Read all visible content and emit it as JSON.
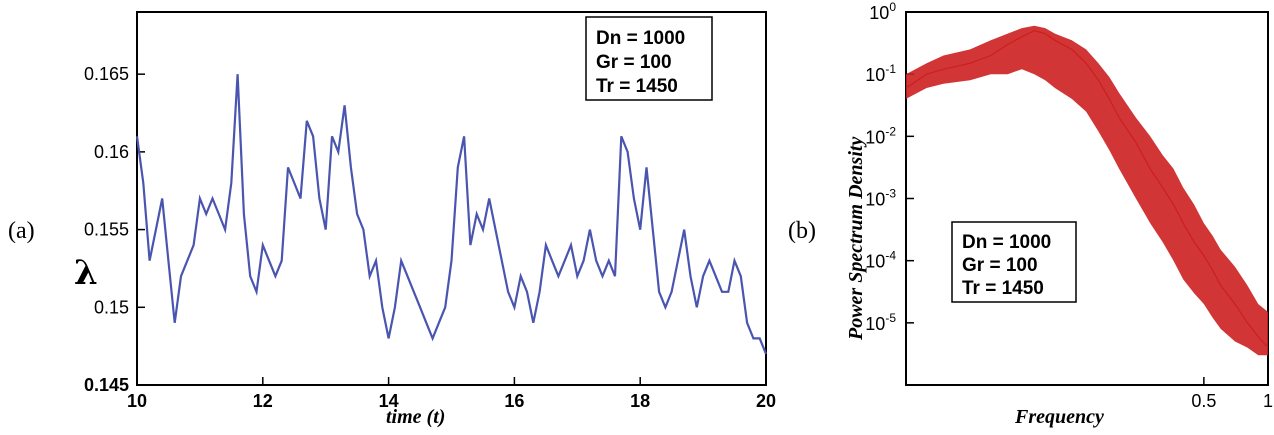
{
  "panel_labels": {
    "a": "(a)",
    "b": "(b)"
  },
  "chart_data": [
    {
      "type": "line",
      "panel": "(a)",
      "xlabel": "time (t)",
      "ylabel": "λ",
      "xlim": [
        10,
        20
      ],
      "ylim": [
        0.145,
        0.169
      ],
      "x_ticks": [
        "10",
        "12",
        "14",
        "16",
        "18",
        "20"
      ],
      "y_ticks": [
        "0.145",
        "0.15",
        "0.155",
        "0.16",
        "0.165"
      ],
      "line_color": "#4a55b0",
      "legend_box": [
        "Dn = 1000",
        "Gr = 100",
        "Tr = 1450"
      ],
      "series": [
        {
          "x": [
            10.0,
            10.1,
            10.2,
            10.3,
            10.4,
            10.5,
            10.6,
            10.7,
            10.8,
            10.9,
            11.0,
            11.1,
            11.2,
            11.3,
            11.4,
            11.5,
            11.6,
            11.7,
            11.8,
            11.9,
            12.0,
            12.1,
            12.2,
            12.3,
            12.4,
            12.5,
            12.6,
            12.7,
            12.8,
            12.9,
            13.0,
            13.1,
            13.2,
            13.3,
            13.4,
            13.5,
            13.6,
            13.7,
            13.8,
            13.9,
            14.0,
            14.1,
            14.2,
            14.3,
            14.4,
            14.5,
            14.6,
            14.7,
            14.8,
            14.9,
            15.0,
            15.1,
            15.2,
            15.3,
            15.4,
            15.5,
            15.6,
            15.7,
            15.8,
            15.9,
            16.0,
            16.1,
            16.2,
            16.3,
            16.4,
            16.5,
            16.6,
            16.7,
            16.8,
            16.9,
            17.0,
            17.1,
            17.2,
            17.3,
            17.4,
            17.5,
            17.6,
            17.7,
            17.8,
            17.9,
            18.0,
            18.1,
            18.2,
            18.3,
            18.4,
            18.5,
            18.6,
            18.7,
            18.8,
            18.9,
            19.0,
            19.1,
            19.2,
            19.3,
            19.4,
            19.5,
            19.6,
            19.7,
            19.8,
            19.9,
            20.0
          ],
          "y": [
            0.161,
            0.158,
            0.153,
            0.155,
            0.157,
            0.153,
            0.149,
            0.152,
            0.153,
            0.154,
            0.157,
            0.156,
            0.157,
            0.156,
            0.155,
            0.158,
            0.165,
            0.156,
            0.152,
            0.151,
            0.154,
            0.153,
            0.152,
            0.153,
            0.159,
            0.158,
            0.157,
            0.162,
            0.161,
            0.157,
            0.155,
            0.161,
            0.16,
            0.163,
            0.159,
            0.156,
            0.155,
            0.152,
            0.153,
            0.15,
            0.148,
            0.15,
            0.153,
            0.152,
            0.151,
            0.15,
            0.149,
            0.148,
            0.149,
            0.15,
            0.153,
            0.159,
            0.161,
            0.154,
            0.156,
            0.155,
            0.157,
            0.155,
            0.153,
            0.151,
            0.15,
            0.152,
            0.151,
            0.149,
            0.151,
            0.154,
            0.153,
            0.152,
            0.153,
            0.154,
            0.152,
            0.153,
            0.155,
            0.153,
            0.152,
            0.153,
            0.152,
            0.161,
            0.16,
            0.157,
            0.155,
            0.159,
            0.155,
            0.151,
            0.15,
            0.151,
            0.153,
            0.155,
            0.152,
            0.15,
            0.152,
            0.153,
            0.152,
            0.151,
            0.151,
            0.153,
            0.152,
            0.149,
            0.148,
            0.148,
            0.147
          ]
        }
      ]
    },
    {
      "type": "line",
      "panel": "(b)",
      "xlabel": "Frequency",
      "ylabel": "Power Spectrum Density",
      "x_scale": "log",
      "y_scale": "log",
      "xlim": [
        0.02,
        1
      ],
      "ylim": [
        1e-06,
        1
      ],
      "x_ticks": [
        "0.5",
        "1"
      ],
      "y_ticks": [
        "10^0",
        "10^-1",
        "10^-2",
        "10^-3",
        "10^-4",
        "10^-5"
      ],
      "line_color": "#cc1f1f",
      "legend_box": [
        "Dn = 1000",
        "Gr = 100",
        "Tr = 1450"
      ],
      "series": [
        {
          "x": [
            0.02,
            0.025,
            0.03,
            0.04,
            0.05,
            0.06,
            0.07,
            0.08,
            0.09,
            0.1,
            0.12,
            0.14,
            0.16,
            0.18,
            0.2,
            0.24,
            0.28,
            0.32,
            0.36,
            0.4,
            0.45,
            0.5,
            0.55,
            0.6,
            0.7,
            0.8,
            0.9,
            1.0
          ],
          "y": [
            0.06,
            0.1,
            0.12,
            0.15,
            0.2,
            0.3,
            0.4,
            0.5,
            0.45,
            0.35,
            0.25,
            0.15,
            0.08,
            0.04,
            0.02,
            0.008,
            0.003,
            0.0015,
            0.0008,
            0.0004,
            0.0002,
            0.00012,
            7e-05,
            4e-05,
            2e-05,
            1e-05,
            6e-06,
            4e-06
          ],
          "upper_envelope": [
            0.1,
            0.15,
            0.2,
            0.25,
            0.35,
            0.45,
            0.55,
            0.6,
            0.55,
            0.45,
            0.35,
            0.25,
            0.15,
            0.09,
            0.05,
            0.02,
            0.01,
            0.005,
            0.003,
            0.0015,
            0.0008,
            0.0004,
            0.00025,
            0.00015,
            8e-05,
            4e-05,
            2e-05,
            1.5e-05
          ],
          "lower_envelope": [
            0.04,
            0.06,
            0.07,
            0.08,
            0.1,
            0.1,
            0.12,
            0.1,
            0.08,
            0.06,
            0.04,
            0.025,
            0.012,
            0.006,
            0.003,
            0.001,
            0.0004,
            0.0002,
            0.0001,
            5e-05,
            3e-05,
            2e-05,
            1.2e-05,
            8e-06,
            5e-06,
            4e-06,
            3e-06,
            3e-06
          ]
        }
      ]
    }
  ]
}
